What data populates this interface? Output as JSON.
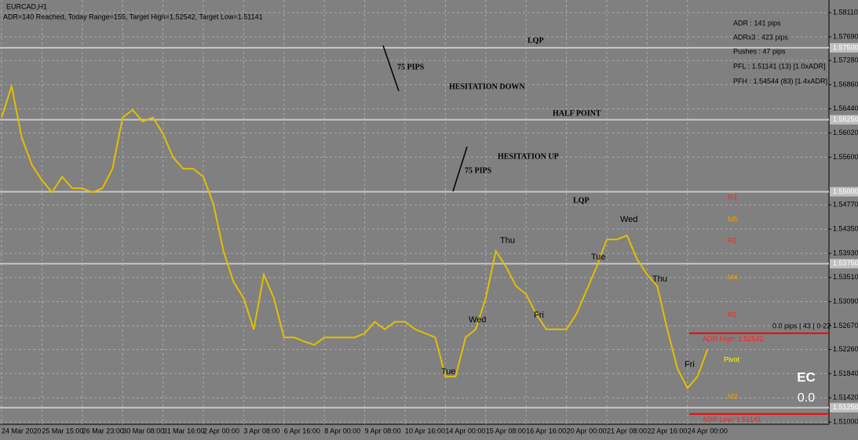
{
  "header": {
    "symbol": "EURCAD,H1",
    "status": "ADR=140 Reached, Today Range=155, Target High=1.52542, Target Low=1.51141"
  },
  "info_panel": [
    "ADR : 141 pips",
    "ADRx3 : 423 pips",
    "Pushes : 47 pips",
    "PFL : 1.51141 (13) [1.0xADR]",
    "PFH : 1.54544 (83) [1.4xADR]"
  ],
  "annotations": [
    "LQP",
    "75 PIPS",
    "HESITATION DOWN",
    "HALF POINT",
    "HESITATION UP",
    "75 PIPS",
    "LQP"
  ],
  "pivots": [
    "R3",
    "M5",
    "R2",
    "M4",
    "R1",
    "Pivot",
    "M2"
  ],
  "days": [
    "Thu",
    "Wed",
    "Tue",
    "Wed",
    "Fri",
    "Tue",
    "Thu",
    "Fri"
  ],
  "status_line": "0.0 pips | 43 | 0-22",
  "corner": {
    "symbol": "EC",
    "value": "0.0"
  },
  "chart_data": {
    "type": "line",
    "color": "#e0c000",
    "grid": true,
    "ylim": [
      1.5096,
      1.5833
    ],
    "yticks": [
      {
        "value": 1.5811,
        "label": "1.58110"
      },
      {
        "value": 1.5769,
        "label": "1.57690"
      },
      {
        "value": 1.5728,
        "label": "1.57280"
      },
      {
        "value": 1.5686,
        "label": "1.56860"
      },
      {
        "value": 1.5644,
        "label": "1.56440"
      },
      {
        "value": 1.5602,
        "label": "1.56020"
      },
      {
        "value": 1.556,
        "label": "1.55600"
      },
      {
        "value": 1.5477,
        "label": "1.54770"
      },
      {
        "value": 1.5435,
        "label": "1.54350"
      },
      {
        "value": 1.5393,
        "label": "1.53930"
      },
      {
        "value": 1.5351,
        "label": "1.53510"
      },
      {
        "value": 1.5309,
        "label": "1.53090"
      },
      {
        "value": 1.5267,
        "label": "1.52670"
      },
      {
        "value": 1.5226,
        "label": "1.52260"
      },
      {
        "value": 1.5184,
        "label": "1.51840"
      },
      {
        "value": 1.5142,
        "label": "1.51420"
      },
      {
        "value": 1.51,
        "label": "1.51000"
      }
    ],
    "levels": [
      {
        "value": 1.575,
        "label": "1.57500"
      },
      {
        "value": 1.5625,
        "label": "1.56250"
      },
      {
        "value": 1.55,
        "label": "1.55000"
      },
      {
        "value": 1.5375,
        "label": "1.53750"
      },
      {
        "value": 1.5125,
        "label": "1.51250"
      }
    ],
    "adr_lines": [
      {
        "value": 1.52542,
        "label": "ADR High: 1.52542"
      },
      {
        "value": 1.51141,
        "label": "ADR Low: 1.51141"
      }
    ],
    "categories": [
      "24 Mar 2020",
      null,
      null,
      null,
      "25 Mar 15:00",
      null,
      null,
      null,
      "26 Mar 23:00",
      null,
      null,
      null,
      "30 Mar 08:00",
      null,
      null,
      null,
      "31 Mar 16:00",
      null,
      null,
      null,
      "2 Apr 00:00",
      null,
      null,
      null,
      "3 Apr 08:00",
      null,
      null,
      null,
      "6 Apr 16:00",
      null,
      null,
      null,
      "8 Apr 00:00",
      null,
      null,
      null,
      "9 Apr 08:00",
      null,
      null,
      null,
      "10 Apr 16:00",
      null,
      null,
      null,
      "14 Apr 00:00",
      null,
      null,
      null,
      "15 Apr 08:00",
      null,
      null,
      null,
      "16 Apr 16:00",
      null,
      null,
      null,
      "20 Apr 00:00",
      null,
      null,
      null,
      "21 Apr 08:00",
      null,
      null,
      null,
      "22 Apr 16:00",
      null,
      null,
      null,
      "24 Apr 00:00",
      null,
      null,
      null
    ],
    "values": [
      1.5629,
      1.5683,
      1.5594,
      1.5547,
      1.552,
      1.5499,
      1.5526,
      1.5506,
      1.5506,
      1.5499,
      1.5506,
      1.554,
      1.5629,
      1.5642,
      1.5622,
      1.5629,
      1.5601,
      1.556,
      1.554,
      1.554,
      1.5526,
      1.5479,
      1.5397,
      1.5343,
      1.5315,
      1.5261,
      1.5356,
      1.5315,
      1.5247,
      1.5247,
      1.524,
      1.5234,
      1.5247,
      1.5247,
      1.5247,
      1.5247,
      1.5254,
      1.5274,
      1.5261,
      1.5274,
      1.5274,
      1.5261,
      1.5254,
      1.5247,
      1.5179,
      1.5179,
      1.5247,
      1.5261,
      1.5315,
      1.5397,
      1.537,
      1.5336,
      1.5322,
      1.5288,
      1.5261,
      1.5261,
      1.5261,
      1.5288,
      1.5329,
      1.537,
      1.5417,
      1.5417,
      1.5424,
      1.5383,
      1.5356,
      1.5336,
      1.5261,
      1.5193,
      1.5159,
      1.5179,
      1.5227,
      null
    ]
  }
}
